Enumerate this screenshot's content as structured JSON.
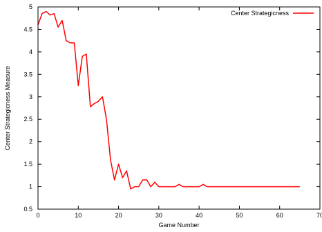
{
  "chart_data": {
    "type": "line",
    "title": "",
    "xlabel": "Game Number",
    "ylabel": "Center Strategicness Measure",
    "xlim": [
      0,
      70
    ],
    "ylim": [
      0.5,
      5
    ],
    "x_ticks": [
      0,
      10,
      20,
      30,
      40,
      50,
      60,
      70
    ],
    "y_ticks": [
      0.5,
      1,
      1.5,
      2,
      2.5,
      3,
      3.5,
      4,
      4.5,
      5
    ],
    "grid": false,
    "legend_position": "top-right",
    "series": [
      {
        "name": "Center Strategicness",
        "color": "#ff0000",
        "x": [
          0,
          1,
          2,
          3,
          4,
          5,
          6,
          7,
          8,
          9,
          10,
          11,
          12,
          13,
          14,
          15,
          16,
          17,
          18,
          19,
          20,
          21,
          22,
          23,
          24,
          25,
          26,
          27,
          28,
          29,
          30,
          31,
          32,
          33,
          34,
          35,
          36,
          37,
          38,
          39,
          40,
          41,
          42,
          43,
          44,
          45,
          46,
          47,
          48,
          49,
          50,
          51,
          52,
          53,
          54,
          55,
          56,
          57,
          58,
          59,
          60,
          61,
          62,
          63,
          64,
          65
        ],
        "y": [
          4.6,
          4.85,
          4.9,
          4.82,
          4.85,
          4.55,
          4.7,
          4.25,
          4.2,
          4.2,
          3.25,
          3.9,
          3.95,
          2.78,
          2.85,
          2.9,
          3.0,
          2.5,
          1.6,
          1.15,
          1.5,
          1.2,
          1.35,
          0.95,
          1.0,
          1.0,
          1.15,
          1.15,
          1.0,
          1.1,
          1.0,
          1.0,
          1.0,
          1.0,
          1.0,
          1.05,
          1.0,
          1.0,
          1.0,
          1.0,
          1.0,
          1.05,
          1.0,
          1.0,
          1.0,
          1.0,
          1.0,
          1.0,
          1.0,
          1.0,
          1.0,
          1.0,
          1.0,
          1.0,
          1.0,
          1.0,
          1.0,
          1.0,
          1.0,
          1.0,
          1.0,
          1.0,
          1.0,
          1.0,
          1.0,
          1.0
        ]
      }
    ]
  }
}
